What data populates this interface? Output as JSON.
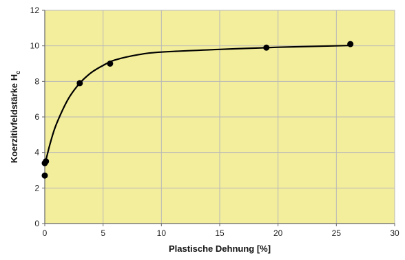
{
  "chart_data": {
    "type": "scatter",
    "xlabel": "Plastische Dehnung [%]",
    "ylabel_main": "Koerzitivfeldstärke H",
    "ylabel_sub": "c",
    "xlim": [
      0,
      30
    ],
    "ylim": [
      0,
      12
    ],
    "x_ticks": [
      "0",
      "5",
      "10",
      "15",
      "20",
      "25",
      "30"
    ],
    "y_ticks": [
      "0",
      "2",
      "4",
      "6",
      "8",
      "10",
      "12"
    ],
    "grid": true,
    "legend": "none",
    "series": [
      {
        "points": [
          {
            "x": 0.0,
            "y": 2.7
          },
          {
            "x": 0.0,
            "y": 3.4
          },
          {
            "x": 0.1,
            "y": 3.5
          },
          {
            "x": 3.0,
            "y": 7.9
          },
          {
            "x": 5.6,
            "y": 9.0
          },
          {
            "x": 19.0,
            "y": 9.9
          },
          {
            "x": 26.2,
            "y": 10.1
          }
        ],
        "trendline": [
          {
            "x": 0.0,
            "y": 3.3
          },
          {
            "x": 0.5,
            "y": 4.6
          },
          {
            "x": 1.0,
            "y": 5.6
          },
          {
            "x": 2.0,
            "y": 7.0
          },
          {
            "x": 3.0,
            "y": 7.9
          },
          {
            "x": 4.0,
            "y": 8.5
          },
          {
            "x": 5.0,
            "y": 8.9
          },
          {
            "x": 6.0,
            "y": 9.2
          },
          {
            "x": 8.0,
            "y": 9.5
          },
          {
            "x": 10.0,
            "y": 9.65
          },
          {
            "x": 15.0,
            "y": 9.8
          },
          {
            "x": 20.0,
            "y": 9.92
          },
          {
            "x": 26.0,
            "y": 10.02
          }
        ]
      }
    ],
    "colors": {
      "plot_background": "#f3ee9c",
      "grid": "#b8b8b8",
      "axis": "#666666",
      "marker": "#000000",
      "line": "#000000"
    }
  }
}
